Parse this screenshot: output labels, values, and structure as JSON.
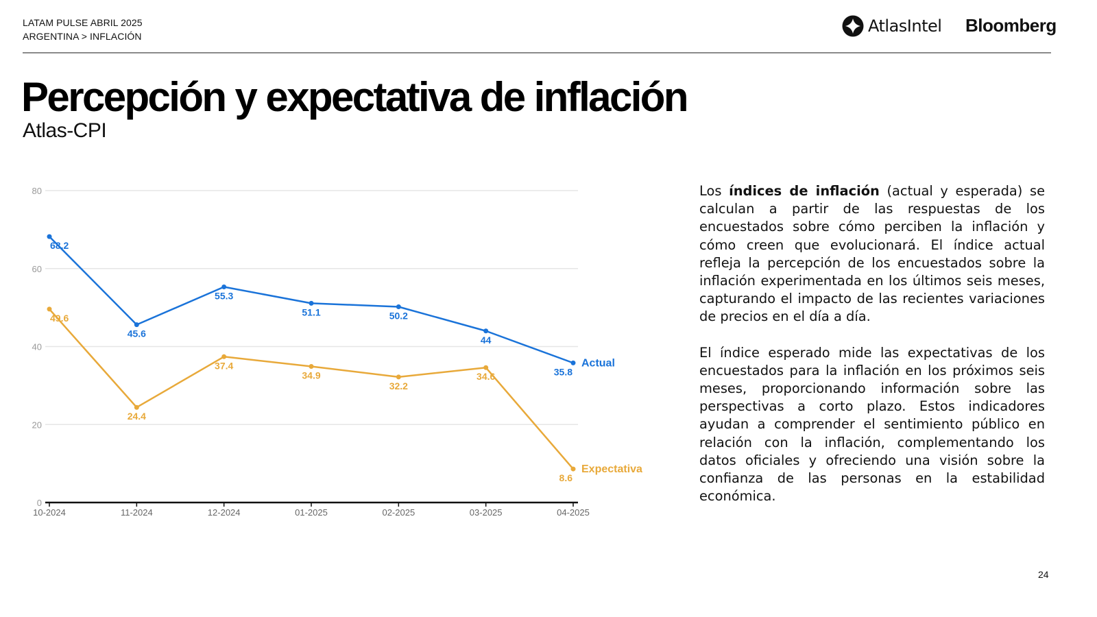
{
  "header": {
    "line1": "LATAM PULSE ABRIL 2025",
    "breadcrumb": [
      "ARGENTINA",
      "INFLACIÓN"
    ],
    "breadcrumb_separator": ">",
    "breadcrumb_text": "ARGENTINA > INFLACIÓN",
    "logos": {
      "atlas": "AtlasIntel",
      "bloomberg": "Bloomberg",
      "atlas_icon": "atlasintel-logo-icon"
    }
  },
  "title": "Percepción y expectativa de inflación",
  "subtitle": "Atlas-CPI",
  "description": {
    "p1_pre": "Los ",
    "p1_bold": "índices de inflación",
    "p1_post": " (actual y esperada) se calculan a partir de las respuestas de los encuestados sobre cómo perciben la inflación y cómo creen que evolucionará. El índice actual refleja la percepción de los encuestados sobre la inflación experimentada en los últimos seis meses, capturando el impacto de las recientes variaciones de precios en el día a día.",
    "p2": "El índice esperado mide las expectativas de los encuestados para la inflación en los próximos seis meses, proporcionando información sobre las perspectivas a corto plazo. Estos indicadores ayudan a comprender el sentimiento público en relación con la inflación, complementando los datos oficiales y ofreciendo una visión sobre la confianza de las personas en la estabilidad económica."
  },
  "page_number": "24",
  "colors": {
    "actual": "#1a73d9",
    "expectativa": "#e8a93a",
    "grid": "#e6e6e6",
    "axis": "#111111",
    "tick_text": "#999999"
  },
  "chart_data": {
    "type": "line",
    "title": "",
    "xlabel": "",
    "ylabel": "",
    "categories": [
      "10-2024",
      "11-2024",
      "12-2024",
      "01-2025",
      "02-2025",
      "03-2025",
      "04-2025"
    ],
    "ylim": [
      0,
      80
    ],
    "yticks": [
      0,
      20,
      40,
      60,
      80
    ],
    "grid": true,
    "legend": "inline-right-end",
    "series": [
      {
        "name": "Actual",
        "color": "#1a73d9",
        "values": [
          68.2,
          45.6,
          55.3,
          51.1,
          50.2,
          44,
          35.8
        ],
        "labels": [
          "68.2",
          "45.6",
          "55.3",
          "51.1",
          "50.2",
          "44",
          "35.8"
        ]
      },
      {
        "name": "Expectativa",
        "color": "#e8a93a",
        "values": [
          49.6,
          24.4,
          37.4,
          34.9,
          32.2,
          34.6,
          8.6
        ],
        "labels": [
          "49.6",
          "24.4",
          "37.4",
          "34.9",
          "32.2",
          "34.6",
          "8.6"
        ]
      }
    ]
  }
}
